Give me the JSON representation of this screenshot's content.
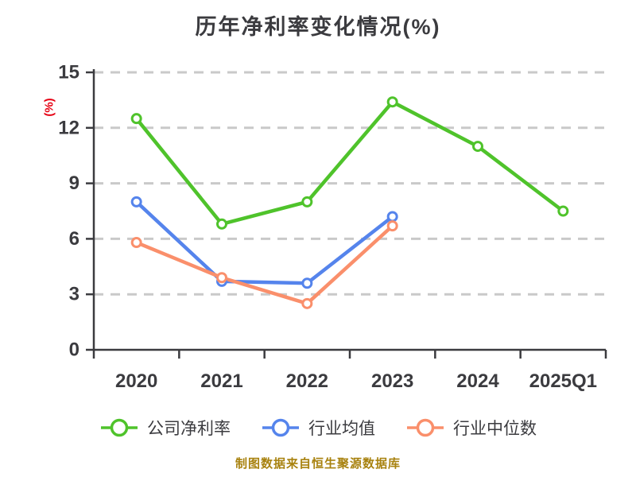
{
  "footer": "制图数据来自恒生聚源数据库",
  "colors": {
    "axis": "#3b3b3f",
    "grid": "#c9c9c9",
    "tick_text": "#3b3b3f",
    "ylabel_text": "#e60012",
    "footer_text": "#a8820f",
    "marker_fill": "#ffffff",
    "background": "#ffffff"
  },
  "chart_data": {
    "type": "line",
    "title": "历年净利率变化情况(%)",
    "ylabel": "(%)",
    "xlabel": "",
    "categories": [
      "2020",
      "2021",
      "2022",
      "2023",
      "2024",
      "2025Q1"
    ],
    "series": [
      {
        "name": "公司净利率",
        "color": "#4fc32b",
        "values": [
          12.5,
          6.8,
          8.0,
          13.4,
          11.0,
          7.5
        ]
      },
      {
        "name": "行业均值",
        "color": "#5584ec",
        "values": [
          8.0,
          3.7,
          3.6,
          7.2,
          null,
          null
        ]
      },
      {
        "name": "行业中位数",
        "color": "#fa8f6b",
        "values": [
          5.8,
          3.9,
          2.5,
          6.7,
          null,
          null
        ]
      }
    ],
    "ylim": [
      0,
      15
    ],
    "yticks": [
      0,
      3,
      6,
      9,
      12,
      15
    ],
    "grid": "horizontal-dashed",
    "legend_position": "bottom",
    "marker_style": "circle-white-fill"
  }
}
